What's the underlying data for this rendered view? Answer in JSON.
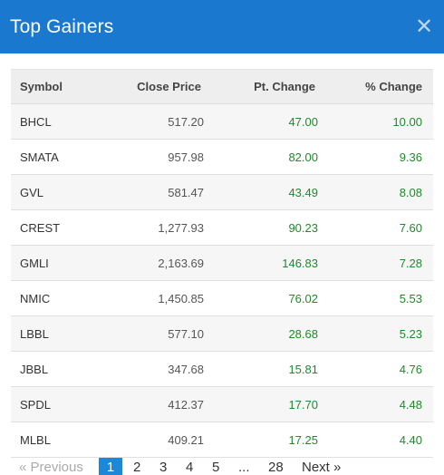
{
  "modal": {
    "title": "Top Gainers",
    "close_glyph": "✕"
  },
  "table": {
    "headers": {
      "symbol": "Symbol",
      "close": "Close Price",
      "pt": "Pt. Change",
      "pct": "% Change"
    },
    "rows": [
      {
        "symbol": "BHCL",
        "close": "517.20",
        "pt": "47.00",
        "pct": "10.00"
      },
      {
        "symbol": "SMATA",
        "close": "957.98",
        "pt": "82.00",
        "pct": "9.36"
      },
      {
        "symbol": "GVL",
        "close": "581.47",
        "pt": "43.49",
        "pct": "8.08"
      },
      {
        "symbol": "CREST",
        "close": "1,277.93",
        "pt": "90.23",
        "pct": "7.60"
      },
      {
        "symbol": "GMLI",
        "close": "2,163.69",
        "pt": "146.83",
        "pct": "7.28"
      },
      {
        "symbol": "NMIC",
        "close": "1,450.85",
        "pt": "76.02",
        "pct": "5.53"
      },
      {
        "symbol": "LBBL",
        "close": "577.10",
        "pt": "28.68",
        "pct": "5.23"
      },
      {
        "symbol": "JBBL",
        "close": "347.68",
        "pt": "15.81",
        "pct": "4.76"
      },
      {
        "symbol": "SPDL",
        "close": "412.37",
        "pt": "17.70",
        "pct": "4.48"
      },
      {
        "symbol": "MLBL",
        "close": "409.21",
        "pt": "17.25",
        "pct": "4.40"
      }
    ]
  },
  "pagination": {
    "prev_label": "« Previous",
    "pages": [
      "1",
      "2",
      "3",
      "4",
      "5"
    ],
    "ellipsis": "...",
    "last_page": "28",
    "next_label": "Next »",
    "active_page": "1"
  },
  "colors": {
    "header_bg": "#1a78cf",
    "positive": "#1e8a2c",
    "active_page_bg": "#1e88d8"
  }
}
